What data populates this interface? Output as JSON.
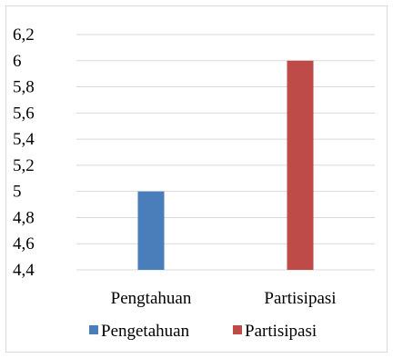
{
  "chart_data": {
    "type": "bar",
    "categories": [
      "Pengtahuan",
      "Partisipasi"
    ],
    "series": [
      {
        "name": "Pengetahuan",
        "values": [
          5,
          null
        ],
        "color": "#4a7ebb"
      },
      {
        "name": "Partisipasi",
        "values": [
          null,
          6
        ],
        "color": "#be4b48"
      }
    ],
    "yticks": [
      "6,2",
      "6",
      "5,8",
      "5,6",
      "5,4",
      "5,2",
      "5",
      "4,8",
      "4,6",
      "4,4"
    ],
    "ylim": [
      4.4,
      6.2
    ],
    "grid": true,
    "legend": "bottom"
  }
}
